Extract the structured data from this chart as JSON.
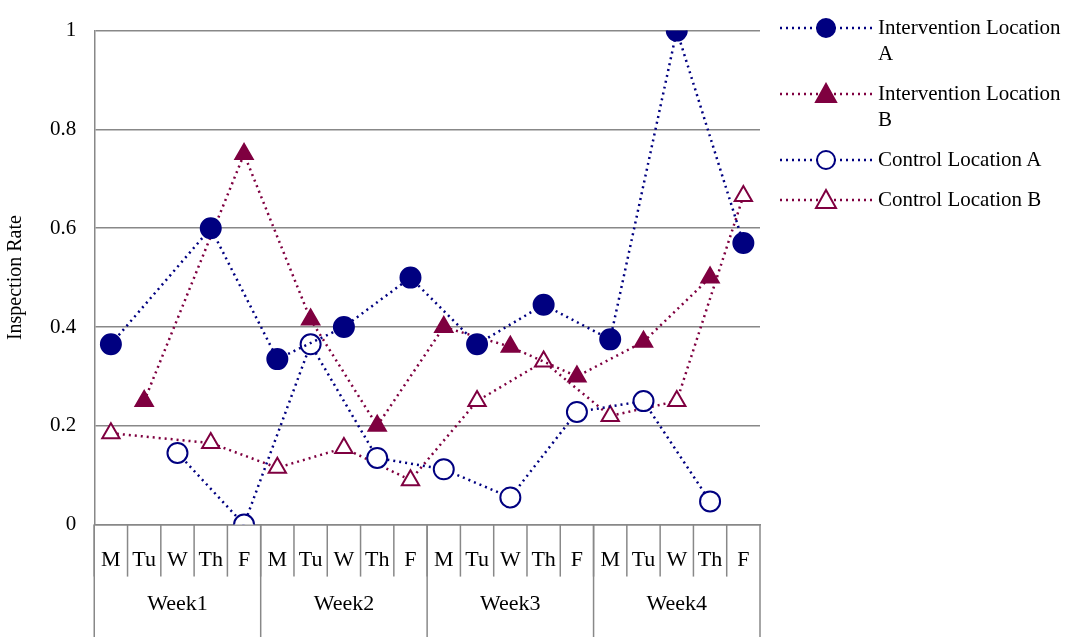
{
  "chart_data": {
    "type": "line",
    "ylabel": "Inspection Rate",
    "categories": [
      "M",
      "Tu",
      "W",
      "Th",
      "F",
      "M",
      "Tu",
      "W",
      "Th",
      "F",
      "M",
      "Tu",
      "W",
      "Th",
      "F",
      "M",
      "Tu",
      "W",
      "Th",
      "F"
    ],
    "annotations": [
      "Week1",
      "Week2",
      "Week3",
      "Week4"
    ],
    "series": [
      {
        "name": "Intervention Location A",
        "color": "#000080",
        "marker": "circle",
        "values": [
          0.365,
          null,
          null,
          0.6,
          null,
          0.335,
          null,
          0.4,
          null,
          0.5,
          null,
          0.365,
          null,
          0.445,
          null,
          0.375,
          null,
          1.0,
          null,
          0.57
        ]
      },
      {
        "name": "Intervention Location B",
        "color": "#7f0040",
        "marker": "triangle",
        "values": [
          null,
          0.25,
          null,
          null,
          0.75,
          null,
          0.415,
          null,
          0.2,
          null,
          0.4,
          null,
          0.36,
          null,
          0.3,
          null,
          0.37,
          null,
          0.5,
          null
        ]
      },
      {
        "name": "Control Location A",
        "color": "#000080",
        "marker": "circle-open",
        "values": [
          null,
          null,
          0.145,
          null,
          0,
          null,
          0.365,
          null,
          0.135,
          null,
          0.112,
          null,
          0.055,
          null,
          0.228,
          null,
          0.25,
          null,
          0.047,
          null
        ]
      },
      {
        "name": "Control Location B",
        "color": "#7f0040",
        "marker": "triangle-open",
        "values": [
          0.185,
          null,
          null,
          0.165,
          null,
          0.115,
          null,
          0.155,
          null,
          0.09,
          null,
          0.25,
          null,
          0.33,
          null,
          0.22,
          null,
          0.25,
          null,
          0.665
        ]
      }
    ],
    "ylim": [
      0,
      1
    ],
    "yticks": [
      0,
      0.2,
      0.4,
      0.6,
      0.8,
      1
    ],
    "grid": "y",
    "legend": "top right",
    "line_style": "dotted"
  }
}
